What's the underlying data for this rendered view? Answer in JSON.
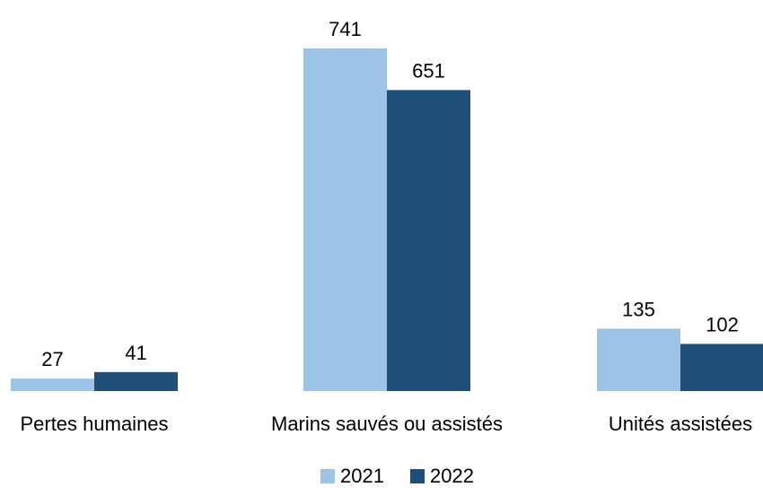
{
  "chart_data": {
    "type": "bar",
    "title": "",
    "xlabel": "",
    "ylabel": "",
    "categories": [
      "Pertes humaines",
      "Marins sauvés ou assistés",
      "Unités assistées"
    ],
    "series": [
      {
        "name": "2021",
        "color": "#9dc3e6",
        "values": [
          27,
          741,
          135
        ]
      },
      {
        "name": "2022",
        "color": "#1f4e79",
        "values": [
          41,
          651,
          102
        ]
      }
    ],
    "ylim": [
      0,
      780
    ],
    "grid": false,
    "legend_position": "bottom-center",
    "data_labels": true
  }
}
